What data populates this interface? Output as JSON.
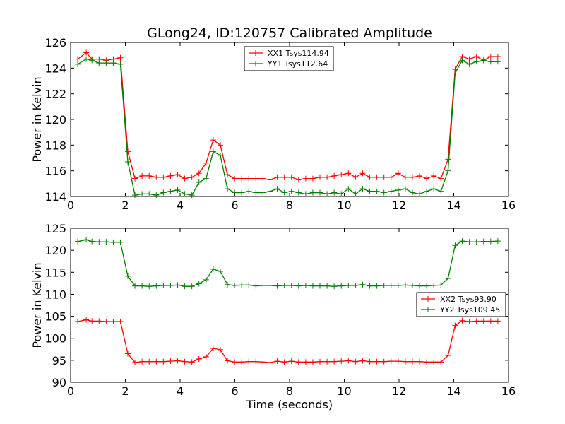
{
  "title": "GLong24, ID:120757 Calibrated Amplitude",
  "chart_data": [
    {
      "type": "line",
      "title": "GLong24, ID:120757 Calibrated Amplitude",
      "xlabel": "",
      "ylabel": "Power in Kelvin",
      "xlim": [
        0,
        16
      ],
      "ylim": [
        114,
        126
      ],
      "xticks": [
        "0",
        "2",
        "4",
        "6",
        "8",
        "10",
        "12",
        "14",
        "16"
      ],
      "yticks": [
        "114",
        "116",
        "118",
        "120",
        "122",
        "124",
        "126"
      ],
      "grid": false,
      "legend_position": "top-center",
      "x": [
        0.26,
        0.57,
        0.78,
        1.04,
        1.3,
        1.56,
        1.82,
        2.09,
        2.35,
        2.61,
        2.87,
        3.13,
        3.39,
        3.65,
        3.91,
        4.17,
        4.43,
        4.69,
        4.95,
        5.21,
        5.47,
        5.73,
        5.99,
        6.25,
        6.51,
        6.77,
        7.03,
        7.29,
        7.55,
        7.81,
        8.07,
        8.33,
        8.59,
        8.85,
        9.11,
        9.37,
        9.63,
        9.89,
        10.15,
        10.41,
        10.67,
        10.93,
        11.19,
        11.45,
        11.71,
        11.97,
        12.23,
        12.49,
        12.75,
        13.01,
        13.27,
        13.53,
        13.79,
        14.05,
        14.31,
        14.57,
        14.83,
        15.09,
        15.35,
        15.61
      ],
      "series": [
        {
          "name": "XX1 Tsys114.94",
          "color": "#ff0000",
          "values": [
            124.7,
            125.2,
            124.7,
            124.7,
            124.6,
            124.7,
            124.8,
            117.5,
            115.4,
            115.6,
            115.6,
            115.5,
            115.5,
            115.6,
            115.7,
            115.4,
            115.5,
            115.8,
            116.6,
            118.4,
            118.0,
            115.7,
            115.4,
            115.4,
            115.4,
            115.4,
            115.4,
            115.3,
            115.5,
            115.5,
            115.5,
            115.3,
            115.4,
            115.4,
            115.5,
            115.5,
            115.6,
            115.7,
            115.8,
            115.5,
            115.8,
            115.5,
            115.5,
            115.5,
            115.5,
            115.8,
            115.5,
            115.5,
            115.6,
            115.4,
            115.6,
            115.4,
            116.9,
            123.9,
            124.9,
            124.7,
            124.9,
            124.6,
            124.9,
            124.9
          ]
        },
        {
          "name": "YY1 Tsys112.64",
          "color": "#007f00",
          "values": [
            124.3,
            124.7,
            124.6,
            124.4,
            124.4,
            124.4,
            124.3,
            116.7,
            114.1,
            114.2,
            114.2,
            114.1,
            114.3,
            114.4,
            114.5,
            114.2,
            114.1,
            115.1,
            115.4,
            117.5,
            117.2,
            114.6,
            114.3,
            114.3,
            114.4,
            114.3,
            114.3,
            114.4,
            114.6,
            114.3,
            114.4,
            114.3,
            114.2,
            114.3,
            114.3,
            114.2,
            114.3,
            114.2,
            114.6,
            114.2,
            114.6,
            114.4,
            114.4,
            114.3,
            114.4,
            114.5,
            114.6,
            114.3,
            114.2,
            114.4,
            114.6,
            114.4,
            116.0,
            123.6,
            124.6,
            124.3,
            124.5,
            124.6,
            124.5,
            124.5
          ]
        }
      ]
    },
    {
      "type": "line",
      "title": "",
      "xlabel": "Time (seconds)",
      "ylabel": "Power in Kelvin",
      "xlim": [
        0,
        16
      ],
      "ylim": [
        90,
        125
      ],
      "xticks": [
        "0",
        "2",
        "4",
        "6",
        "8",
        "10",
        "12",
        "14",
        "16"
      ],
      "yticks": [
        "90",
        "95",
        "100",
        "105",
        "110",
        "115",
        "120",
        "125"
      ],
      "grid": false,
      "legend_position": "right",
      "x": [
        0.26,
        0.57,
        0.78,
        1.04,
        1.3,
        1.56,
        1.82,
        2.09,
        2.35,
        2.61,
        2.87,
        3.13,
        3.39,
        3.65,
        3.91,
        4.17,
        4.43,
        4.69,
        4.95,
        5.21,
        5.47,
        5.73,
        5.99,
        6.25,
        6.51,
        6.77,
        7.03,
        7.29,
        7.55,
        7.81,
        8.07,
        8.33,
        8.59,
        8.85,
        9.11,
        9.37,
        9.63,
        9.89,
        10.15,
        10.41,
        10.67,
        10.93,
        11.19,
        11.45,
        11.71,
        11.97,
        12.23,
        12.49,
        12.75,
        13.01,
        13.27,
        13.53,
        13.79,
        14.05,
        14.31,
        14.57,
        14.83,
        15.09,
        15.35,
        15.61
      ],
      "series": [
        {
          "name": "XX2 Tsys93.90",
          "color": "#ff0000",
          "values": [
            103.8,
            104.2,
            103.9,
            103.9,
            103.8,
            103.8,
            103.8,
            96.5,
            94.5,
            94.7,
            94.7,
            94.7,
            94.7,
            94.8,
            94.9,
            94.7,
            94.6,
            95.3,
            95.8,
            97.7,
            97.4,
            94.9,
            94.6,
            94.6,
            94.7,
            94.7,
            94.6,
            94.5,
            94.8,
            94.6,
            94.8,
            94.6,
            94.6,
            94.6,
            94.7,
            94.7,
            94.7,
            94.8,
            94.9,
            94.7,
            94.9,
            94.7,
            94.7,
            94.7,
            94.8,
            94.8,
            94.7,
            94.7,
            94.7,
            94.6,
            94.6,
            94.6,
            96.1,
            102.9,
            104.0,
            103.8,
            103.9,
            103.9,
            103.9,
            103.9
          ]
        },
        {
          "name": "YY2 Tsys109.45",
          "color": "#007f00",
          "values": [
            122.0,
            122.4,
            122.0,
            121.9,
            121.9,
            121.8,
            121.8,
            114.1,
            111.9,
            111.9,
            111.8,
            111.9,
            112.0,
            112.0,
            112.1,
            111.8,
            111.8,
            112.4,
            113.3,
            115.7,
            115.2,
            112.2,
            112.0,
            112.1,
            112.1,
            111.9,
            112.0,
            112.0,
            111.9,
            112.0,
            112.0,
            111.9,
            112.0,
            111.9,
            111.9,
            111.9,
            111.8,
            111.9,
            112.0,
            112.0,
            112.2,
            111.9,
            111.9,
            112.0,
            112.0,
            112.0,
            112.1,
            112.0,
            111.9,
            111.9,
            112.0,
            112.1,
            113.6,
            121.1,
            122.1,
            121.9,
            121.9,
            122.0,
            122.0,
            122.1
          ]
        }
      ]
    }
  ]
}
